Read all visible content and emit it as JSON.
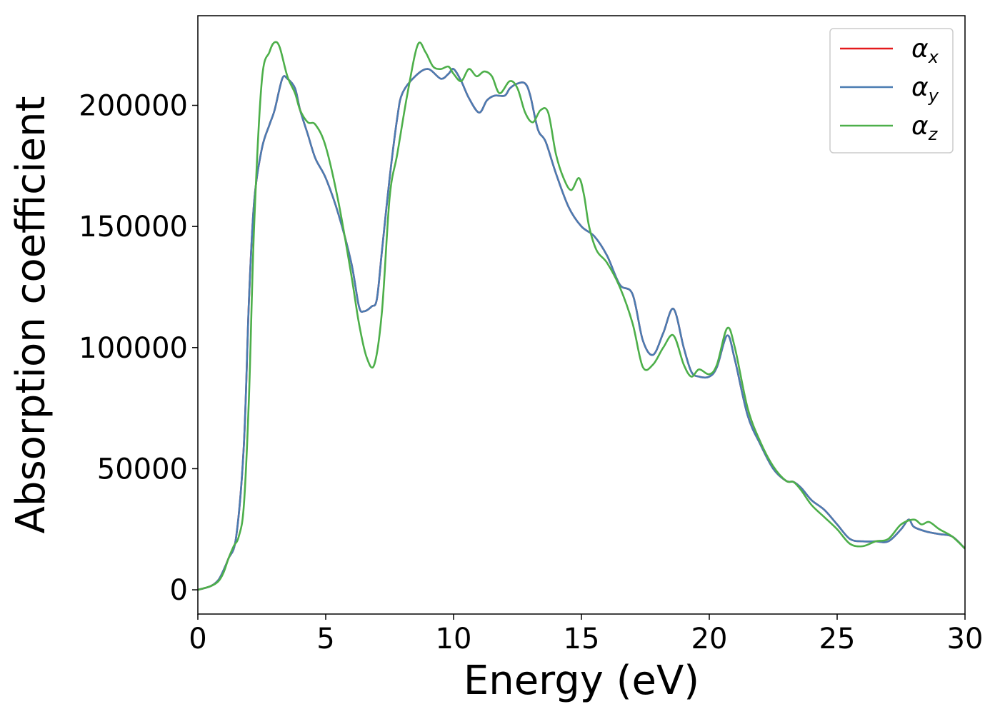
{
  "chart_data": {
    "type": "line",
    "title": "",
    "xlabel": "Energy (eV)",
    "ylabel": "Absorption coefficient",
    "xlim": [
      0,
      30
    ],
    "ylim": [
      -10000,
      237000
    ],
    "xticks": [
      0,
      5,
      10,
      15,
      20,
      25,
      30
    ],
    "xtick_labels": [
      "0",
      "5",
      "10",
      "15",
      "20",
      "25",
      "30"
    ],
    "yticks": [
      0,
      50000,
      100000,
      150000,
      200000
    ],
    "ytick_labels": [
      "0",
      "50000",
      "100000",
      "150000",
      "200000"
    ],
    "grid": false,
    "legend_position": "top-right",
    "series": [
      {
        "name": "α_x",
        "legend_symbol": "α",
        "legend_subscript": "x",
        "color": "#e41a1c",
        "x": [
          0,
          0.5,
          0.8,
          1,
          1.2,
          1.5,
          1.8,
          2,
          2.2,
          2.5,
          2.8,
          3,
          3.3,
          3.5,
          3.8,
          4,
          4.3,
          4.6,
          5,
          5.5,
          6,
          6.3,
          6.5,
          6.8,
          7,
          7.2,
          7.5,
          7.8,
          8,
          8.5,
          9,
          9.5,
          9.8,
          10,
          10.3,
          10.6,
          11,
          11.3,
          11.6,
          12,
          12.2,
          12.5,
          12.8,
          13,
          13.3,
          13.6,
          14,
          14.5,
          15,
          15.5,
          16,
          16.5,
          17,
          17.4,
          17.8,
          18.2,
          18.6,
          19,
          19.3,
          19.6,
          20,
          20.3,
          20.7,
          21,
          21.5,
          22,
          22.5,
          23,
          23.3,
          23.6,
          24,
          24.5,
          25,
          25.5,
          26,
          26.5,
          27,
          27.5,
          27.8,
          28,
          28.5,
          29,
          29.5,
          30
        ],
        "values": [
          0,
          1500,
          4000,
          8000,
          13000,
          22000,
          60000,
          120000,
          160000,
          182000,
          192000,
          198000,
          211000,
          211000,
          207000,
          198000,
          188000,
          178000,
          170000,
          155000,
          135000,
          117000,
          115000,
          117000,
          120000,
          140000,
          170000,
          195000,
          205000,
          212000,
          215000,
          211000,
          213000,
          215000,
          210000,
          203000,
          197000,
          202000,
          204000,
          204000,
          207000,
          209000,
          209000,
          204000,
          190000,
          185000,
          172000,
          158000,
          150000,
          146000,
          138000,
          126000,
          122000,
          103000,
          97000,
          106000,
          116000,
          100000,
          90000,
          88000,
          88000,
          92000,
          105000,
          95000,
          72000,
          60000,
          50000,
          45000,
          44500,
          42000,
          37000,
          33000,
          27000,
          21000,
          20000,
          20000,
          20000,
          25000,
          29000,
          26000,
          24000,
          23000,
          22000,
          17000
        ]
      },
      {
        "name": "α_y",
        "legend_symbol": "α",
        "legend_subscript": "y",
        "color": "#4a7cb2",
        "x": [
          0,
          0.5,
          0.8,
          1,
          1.2,
          1.5,
          1.8,
          2,
          2.2,
          2.5,
          2.8,
          3,
          3.3,
          3.5,
          3.8,
          4,
          4.3,
          4.6,
          5,
          5.5,
          6,
          6.3,
          6.5,
          6.8,
          7,
          7.2,
          7.5,
          7.8,
          8,
          8.5,
          9,
          9.5,
          9.8,
          10,
          10.3,
          10.6,
          11,
          11.3,
          11.6,
          12,
          12.2,
          12.5,
          12.8,
          13,
          13.3,
          13.6,
          14,
          14.5,
          15,
          15.5,
          16,
          16.5,
          17,
          17.4,
          17.8,
          18.2,
          18.6,
          19,
          19.3,
          19.6,
          20,
          20.3,
          20.7,
          21,
          21.5,
          22,
          22.5,
          23,
          23.3,
          23.6,
          24,
          24.5,
          25,
          25.5,
          26,
          26.5,
          27,
          27.5,
          27.8,
          28,
          28.5,
          29,
          29.5,
          30
        ],
        "values": [
          0,
          1500,
          4000,
          8000,
          13000,
          22000,
          60000,
          120000,
          160000,
          182000,
          192000,
          198000,
          211000,
          211000,
          207000,
          198000,
          188000,
          178000,
          170000,
          155000,
          135000,
          117000,
          115000,
          117000,
          120000,
          140000,
          170000,
          195000,
          205000,
          212000,
          215000,
          211000,
          213000,
          215000,
          210000,
          203000,
          197000,
          202000,
          204000,
          204000,
          207000,
          209000,
          209000,
          204000,
          190000,
          185000,
          172000,
          158000,
          150000,
          146000,
          138000,
          126000,
          122000,
          103000,
          97000,
          106000,
          116000,
          100000,
          90000,
          88000,
          88000,
          92000,
          105000,
          95000,
          72000,
          60000,
          50000,
          45000,
          44500,
          42000,
          37000,
          33000,
          27000,
          21000,
          20000,
          20000,
          20000,
          25000,
          29000,
          26000,
          24000,
          23000,
          22000,
          17000
        ]
      },
      {
        "name": "α_z",
        "legend_symbol": "α",
        "legend_subscript": "z",
        "color": "#4daf4a",
        "x": [
          0,
          0.5,
          0.8,
          1,
          1.2,
          1.4,
          1.6,
          1.8,
          2,
          2.2,
          2.5,
          2.8,
          3,
          3.2,
          3.5,
          3.8,
          4,
          4.3,
          4.6,
          5,
          5.5,
          6,
          6.3,
          6.6,
          6.9,
          7.2,
          7.5,
          7.8,
          8.2,
          8.6,
          8.9,
          9.2,
          9.5,
          9.8,
          10,
          10.3,
          10.6,
          10.9,
          11.2,
          11.5,
          11.8,
          12.2,
          12.5,
          12.8,
          13.1,
          13.4,
          13.7,
          14,
          14.3,
          14.6,
          14.9,
          15.1,
          15.3,
          15.6,
          16,
          16.5,
          17,
          17.4,
          17.8,
          18.2,
          18.6,
          19,
          19.3,
          19.6,
          20,
          20.3,
          20.7,
          21,
          21.5,
          22,
          22.5,
          23,
          23.3,
          23.6,
          24,
          24.5,
          25,
          25.5,
          26,
          26.5,
          27,
          27.5,
          28,
          28.3,
          28.6,
          29,
          29.5,
          30
        ],
        "values": [
          0,
          1500,
          3500,
          7000,
          13000,
          18000,
          22000,
          35000,
          80000,
          150000,
          210000,
          222000,
          226000,
          224000,
          212000,
          205000,
          198000,
          193000,
          192000,
          183000,
          160000,
          130000,
          110000,
          96000,
          93000,
          115000,
          162000,
          180000,
          205000,
          225000,
          222000,
          216000,
          215000,
          216000,
          213000,
          210000,
          215000,
          212000,
          214000,
          212000,
          205000,
          210000,
          207000,
          197000,
          193000,
          198000,
          197000,
          180000,
          170000,
          165000,
          170000,
          163000,
          150000,
          140000,
          135000,
          125000,
          110000,
          92000,
          93000,
          100000,
          105000,
          93000,
          88000,
          91000,
          89000,
          93000,
          108000,
          100000,
          75000,
          61000,
          51000,
          45000,
          44500,
          41000,
          35000,
          30000,
          25000,
          19000,
          18000,
          20000,
          21000,
          27000,
          29000,
          27000,
          28000,
          25000,
          22000,
          17000
        ]
      }
    ]
  }
}
